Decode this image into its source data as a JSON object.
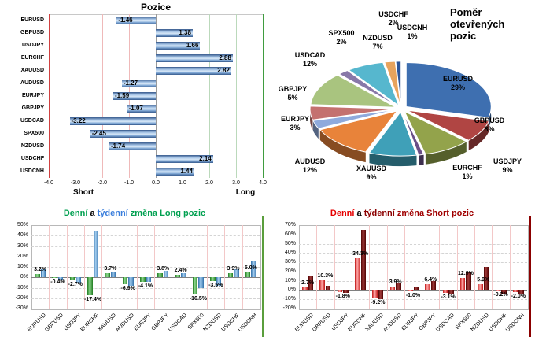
{
  "chart_data": [
    {
      "id": "positions",
      "type": "bar",
      "orientation": "horizontal",
      "title": "Pozice",
      "categories": [
        "EURUSD",
        "GBPUSD",
        "USDJPY",
        "EURCHF",
        "XAUUSD",
        "AUDUSD",
        "EURJPY",
        "GBPJPY",
        "USDCAD",
        "SPX500",
        "NZDUSD",
        "USDCHF",
        "USDCNH"
      ],
      "values": [
        -1.46,
        1.38,
        1.66,
        2.88,
        2.82,
        -1.27,
        -1.59,
        -1.07,
        -3.22,
        -2.45,
        -1.74,
        2.14,
        1.44
      ],
      "xlim": [
        -4,
        4
      ],
      "x_ticks": [
        "-4.0",
        "-3.0",
        "-2.0",
        "-1.0",
        "0.0",
        "1.0",
        "2.0",
        "3.0",
        "4.0"
      ],
      "axis_left_label": "Short",
      "axis_right_label": "Long",
      "bar_color": "#7FA8D6",
      "short_zone_color": "#D04040",
      "long_zone_color": "#3F9C3F"
    },
    {
      "id": "open-positions-ratio",
      "type": "pie",
      "title": "Poměr otevřených pozic",
      "labels": [
        "EURUSD",
        "GBPUSD",
        "USDJPY",
        "EURCHF",
        "XAUUSD",
        "AUDUSD",
        "EURJPY",
        "GBPJPY",
        "USDCAD",
        "SPX500",
        "NZDUSD",
        "USDCHF",
        "USDCNH"
      ],
      "values": [
        29,
        8,
        9,
        1,
        9,
        12,
        3,
        5,
        12,
        2,
        7,
        2,
        1
      ],
      "colors": [
        "#3E6FB0",
        "#B04543",
        "#93A34B",
        "#6A4F87",
        "#3FA0B8",
        "#E8833A",
        "#8FAADC",
        "#C4716F",
        "#A9C47F",
        "#8878A8",
        "#56B7CE",
        "#E8A35C",
        "#2F5597"
      ]
    },
    {
      "id": "long-change",
      "type": "bar",
      "title_parts": [
        {
          "text": "Denní",
          "color": "#00A050"
        },
        {
          "text": " a ",
          "color": "#000000"
        },
        {
          "text": "týdenní",
          "color": "#3A7EDC"
        },
        {
          "text": " změna Long pozic",
          "color": "#00A050"
        }
      ],
      "categories": [
        "EURUSD",
        "GBPUSD",
        "USDJPY",
        "EURCHF",
        "XAUUSD",
        "AUDUSD",
        "EURJPY",
        "GBPJPY",
        "USDCAD",
        "SPX500",
        "NZDUSD",
        "USDCHF",
        "USDCNH"
      ],
      "series": [
        {
          "name": "Denní",
          "color": "#1E7A1E",
          "color_light": "#8FD98F",
          "show_labels": true,
          "values": [
            3.2,
            -0.4,
            -2.7,
            -17.4,
            3.7,
            -6.9,
            -4.1,
            3.8,
            2.4,
            -16.5,
            -3.5,
            3.9,
            5.0
          ]
        },
        {
          "name": "Týdenní",
          "color": "#2F6EA8",
          "color_light": "#A8D1F2",
          "show_labels": false,
          "values": [
            8,
            -3,
            -5,
            45,
            5,
            -8,
            -4,
            6,
            4,
            -10,
            -8,
            8,
            15
          ]
        }
      ],
      "ylim": [
        -30,
        50
      ],
      "ytick_step": 10,
      "accent_color": "#5A9E3C"
    },
    {
      "id": "short-change",
      "type": "bar",
      "title_parts": [
        {
          "text": "Denní",
          "color": "#E60000"
        },
        {
          "text": " a ",
          "color": "#000000"
        },
        {
          "text": "týdenní",
          "color": "#8B0000"
        },
        {
          "text": " změna Short pozic",
          "color": "#A00000"
        }
      ],
      "categories": [
        "EURUSD",
        "GBPUSD",
        "USDJPY",
        "EURCHF",
        "XAUUSD",
        "AUDUSD",
        "EURJPY",
        "GBPJPY",
        "USDCAD",
        "SPX500",
        "NZDUSD",
        "USDCHF",
        "USDCNH"
      ],
      "series": [
        {
          "name": "Denní",
          "color": "#C01414",
          "color_light": "#FFA8A8",
          "show_labels": true,
          "values": [
            2.7,
            10.3,
            -1.8,
            34.3,
            -9.2,
            3.9,
            -1.0,
            6.4,
            -3.1,
            12.9,
            5.9,
            -0.2,
            -2.0
          ]
        },
        {
          "name": "Týdenní",
          "color": "#4D0000",
          "color_light": "#A03A3A",
          "show_labels": false,
          "values": [
            15,
            5,
            -3,
            65,
            -10,
            8,
            3,
            10,
            -5,
            20,
            25,
            -5,
            -4
          ]
        }
      ],
      "ylim": [
        -20,
        70
      ],
      "ytick_step": 10,
      "accent_color": "#8B0000"
    }
  ]
}
